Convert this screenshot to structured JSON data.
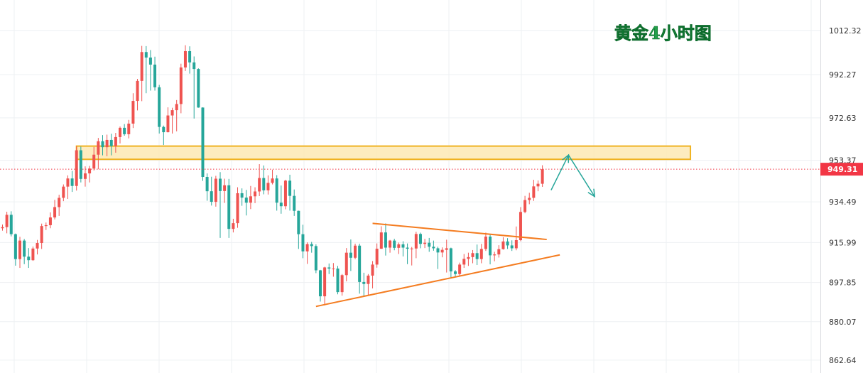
{
  "colors": {
    "up": "#ef5350",
    "down": "#26a69a",
    "triangle_line": "#f47c20",
    "zone_fill": "#fde9b4",
    "zone_stroke": "#f0b323",
    "arrow": "#26a69a",
    "current_price": "#f23645",
    "title": "#22a14a"
  },
  "chart_data": {
    "type": "candlestick",
    "title": "黄金4小时图",
    "y_axis": {
      "position": "right",
      "ylim": [
        860,
        1020
      ],
      "ticks": [
        "1012.32",
        "992.27",
        "972.63",
        "953.37",
        "934.49",
        "915.99",
        "897.85",
        "880.07",
        "862.64"
      ]
    },
    "grid": true,
    "current_price": {
      "value": 949.31,
      "label": "949.31"
    },
    "resistance_zone": {
      "x_start": 17,
      "x_end": 158,
      "low": 953.8,
      "high": 959.8
    },
    "triangle": {
      "upper": {
        "from": {
          "x": 85,
          "price": 924.7
        },
        "to": {
          "x": 125,
          "price": 917.4
        }
      },
      "lower": {
        "from": {
          "x": 72,
          "price": 887.0
        },
        "to": {
          "x": 128,
          "price": 910.4
        }
      }
    },
    "forecast_path": [
      {
        "x": 126,
        "price": 939.8
      },
      {
        "x": 130,
        "price": 955.7
      },
      {
        "x": 136,
        "price": 936.9
      }
    ],
    "candles": [
      [
        922.5,
        924.2,
        921.4,
        923.0
      ],
      [
        923.0,
        930.0,
        920.2,
        928.6
      ],
      [
        928.6,
        930.2,
        918.8,
        919.8
      ],
      [
        919.8,
        920.1,
        905.5,
        908.5
      ],
      [
        908.5,
        918.6,
        904.5,
        916.9
      ],
      [
        916.9,
        917.6,
        906.2,
        909.6
      ],
      [
        909.6,
        913.5,
        904.5,
        908.0
      ],
      [
        908.0,
        914.2,
        907.7,
        913.3
      ],
      [
        913.3,
        917.2,
        910.6,
        915.8
      ],
      [
        915.8,
        924.6,
        913.1,
        923.5
      ],
      [
        923.5,
        925.1,
        921.7,
        923.9
      ],
      [
        923.9,
        929.7,
        922.5,
        927.4
      ],
      [
        927.4,
        935.4,
        926.5,
        932.1
      ],
      [
        932.1,
        937.7,
        928.1,
        936.3
      ],
      [
        936.3,
        942.4,
        934.8,
        941.4
      ],
      [
        941.4,
        946.5,
        935.8,
        945.1
      ],
      [
        945.1,
        948.5,
        939.0,
        941.7
      ],
      [
        941.7,
        959.7,
        939.6,
        957.9
      ],
      [
        957.9,
        959.6,
        943.3,
        944.9
      ],
      [
        944.9,
        950.6,
        941.4,
        947.4
      ],
      [
        947.4,
        950.8,
        943.3,
        949.6
      ],
      [
        949.6,
        959.4,
        948.7,
        955.9
      ],
      [
        955.9,
        963.5,
        949.3,
        962.0
      ],
      [
        962.0,
        964.8,
        955.6,
        959.3
      ],
      [
        959.3,
        965.0,
        955.2,
        962.6
      ],
      [
        962.6,
        965.4,
        955.6,
        959.8
      ],
      [
        959.8,
        965.8,
        956.8,
        963.9
      ],
      [
        963.9,
        968.7,
        961.0,
        968.1
      ],
      [
        968.1,
        969.8,
        964.5,
        965.2
      ],
      [
        965.2,
        971.7,
        963.3,
        970.0
      ],
      [
        970.0,
        983.8,
        968.0,
        980.3
      ],
      [
        980.3,
        990.3,
        976.0,
        989.4
      ],
      [
        989.4,
        1005.3,
        980.2,
        1002.5
      ],
      [
        1002.5,
        1005.2,
        983.8,
        1000.0
      ],
      [
        1000.0,
        1003.4,
        985.0,
        996.8
      ],
      [
        996.8,
        1000.4,
        985.0,
        986.5
      ],
      [
        986.5,
        987.6,
        965.5,
        968.5
      ],
      [
        968.5,
        969.1,
        960.3,
        966.1
      ],
      [
        966.1,
        977.4,
        966.0,
        973.7
      ],
      [
        973.7,
        977.2,
        965.5,
        976.1
      ],
      [
        976.1,
        980.7,
        966.5,
        978.9
      ],
      [
        978.9,
        997.2,
        974.7,
        995.5
      ],
      [
        995.5,
        1005.6,
        993.9,
        1002.9
      ],
      [
        1002.9,
        1005.1,
        992.7,
        997.8
      ],
      [
        997.8,
        1000.5,
        972.3,
        994.8
      ],
      [
        994.8,
        995.1,
        977.2,
        977.3
      ],
      [
        977.3,
        977.4,
        944.0,
        945.8
      ],
      [
        945.8,
        947.4,
        935.0,
        939.3
      ],
      [
        939.3,
        945.9,
        932.8,
        934.5
      ],
      [
        934.5,
        946.3,
        932.3,
        945.0
      ],
      [
        945.0,
        948.0,
        918.1,
        939.4
      ],
      [
        939.4,
        945.0,
        934.0,
        942.0
      ],
      [
        942.0,
        944.9,
        918.1,
        922.2
      ],
      [
        922.2,
        926.8,
        920.6,
        924.8
      ],
      [
        924.8,
        941.1,
        922.7,
        938.4
      ],
      [
        938.4,
        940.6,
        932.7,
        936.4
      ],
      [
        936.4,
        939.9,
        928.3,
        934.1
      ],
      [
        934.1,
        941.7,
        931.2,
        937.0
      ],
      [
        937.0,
        941.1,
        933.9,
        939.2
      ],
      [
        939.2,
        951.6,
        937.1,
        945.3
      ],
      [
        945.3,
        951.0,
        937.9,
        939.7
      ],
      [
        939.7,
        946.5,
        937.8,
        943.1
      ],
      [
        943.1,
        949.1,
        942.4,
        945.1
      ],
      [
        945.1,
        946.6,
        930.5,
        934.1
      ],
      [
        934.1,
        941.9,
        929.1,
        932.5
      ],
      [
        932.5,
        944.5,
        931.1,
        944.1
      ],
      [
        944.1,
        946.8,
        930.5,
        937.2
      ],
      [
        937.2,
        940.1,
        928.1,
        930.4
      ],
      [
        930.4,
        930.5,
        913.1,
        919.8
      ],
      [
        919.8,
        924.1,
        908.9,
        912.0
      ],
      [
        912.0,
        916.1,
        906.3,
        915.3
      ],
      [
        915.3,
        916.3,
        911.4,
        914.4
      ],
      [
        914.4,
        915.2,
        902.1,
        903.4
      ],
      [
        903.4,
        903.6,
        889.2,
        891.6
      ],
      [
        891.6,
        905.0,
        887.5,
        904.7
      ],
      [
        904.7,
        906.5,
        901.7,
        904.2
      ],
      [
        904.2,
        906.7,
        900.5,
        904.2
      ],
      [
        904.2,
        905.4,
        892.5,
        893.5
      ],
      [
        893.5,
        901.7,
        891.9,
        901.2
      ],
      [
        901.2,
        913.5,
        898.4,
        911.4
      ],
      [
        911.4,
        917.4,
        903.1,
        909.1
      ],
      [
        909.1,
        915.5,
        908.4,
        914.6
      ],
      [
        914.6,
        915.5,
        892.8,
        898.1
      ],
      [
        898.1,
        902.3,
        891.3,
        897.2
      ],
      [
        897.2,
        901.7,
        891.8,
        901.0
      ],
      [
        901.0,
        907.6,
        895.2,
        906.0
      ],
      [
        906.0,
        915.6,
        904.6,
        913.2
      ],
      [
        913.2,
        923.4,
        913.1,
        920.6
      ],
      [
        920.6,
        924.7,
        910.1,
        913.7
      ],
      [
        913.7,
        917.2,
        911.4,
        916.9
      ],
      [
        916.9,
        917.7,
        912.5,
        913.6
      ],
      [
        913.6,
        916.0,
        910.8,
        915.2
      ],
      [
        915.2,
        916.6,
        909.7,
        913.7
      ],
      [
        913.7,
        915.6,
        906.2,
        913.2
      ],
      [
        913.2,
        914.0,
        905.6,
        913.3
      ],
      [
        913.3,
        920.9,
        908.9,
        919.9
      ],
      [
        919.9,
        920.5,
        913.4,
        915.4
      ],
      [
        915.4,
        917.7,
        913.5,
        915.9
      ],
      [
        915.9,
        918.1,
        911.8,
        914.1
      ],
      [
        914.1,
        916.9,
        912.3,
        913.4
      ],
      [
        913.4,
        914.1,
        904.0,
        911.5
      ],
      [
        911.5,
        913.8,
        909.3,
        912.7
      ],
      [
        912.7,
        917.3,
        902.4,
        913.4
      ],
      [
        913.4,
        913.7,
        900.2,
        902.9
      ],
      [
        902.9,
        903.5,
        900.4,
        901.7
      ],
      [
        901.7,
        906.9,
        900.6,
        906.0
      ],
      [
        906.0,
        910.8,
        904.5,
        908.6
      ],
      [
        908.6,
        911.4,
        905.4,
        909.4
      ],
      [
        909.4,
        912.6,
        906.6,
        911.2
      ],
      [
        911.2,
        915.1,
        905.8,
        908.5
      ],
      [
        908.5,
        915.4,
        906.6,
        913.1
      ],
      [
        913.1,
        920.5,
        912.2,
        918.7
      ],
      [
        918.7,
        919.5,
        906.1,
        910.2
      ],
      [
        910.2,
        911.8,
        907.5,
        910.6
      ],
      [
        910.6,
        914.8,
        909.2,
        913.0
      ],
      [
        913.0,
        918.4,
        912.8,
        916.5
      ],
      [
        916.5,
        918.0,
        913.1,
        914.7
      ],
      [
        914.7,
        917.0,
        912.2,
        913.4
      ],
      [
        913.4,
        923.3,
        912.5,
        917.1
      ],
      [
        917.1,
        932.1,
        916.6,
        929.9
      ],
      [
        929.9,
        937.2,
        929.3,
        935.3
      ],
      [
        935.3,
        938.6,
        933.4,
        936.3
      ],
      [
        936.3,
        944.5,
        934.9,
        941.5
      ],
      [
        941.5,
        944.2,
        939.3,
        942.7
      ],
      [
        942.7,
        951.1,
        941.3,
        949.3
      ]
    ]
  }
}
